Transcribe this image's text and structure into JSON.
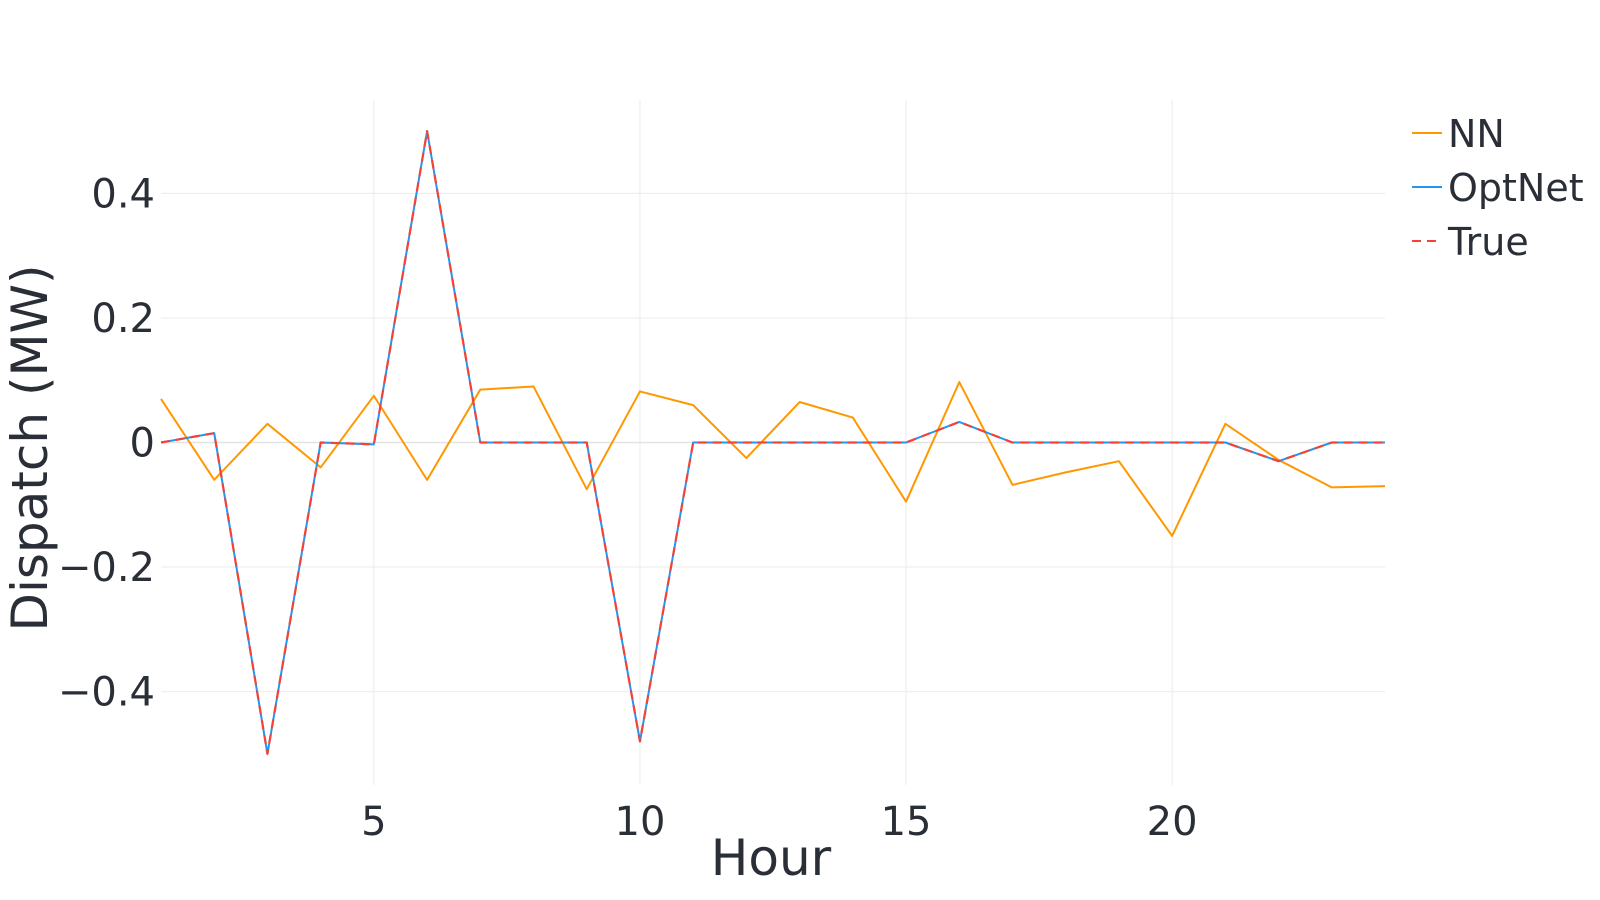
{
  "chart_data": {
    "type": "line",
    "title": "",
    "xlabel": "Hour",
    "ylabel": "Dispatch (MW)",
    "xlim": [
      1,
      24
    ],
    "ylim": [
      -0.55,
      0.55
    ],
    "grid": true,
    "legend_position": "top-right",
    "x_ticks": [
      5,
      10,
      15,
      20
    ],
    "x_tick_labels": [
      "5",
      "10",
      "15",
      "20"
    ],
    "y_ticks": [
      0.4,
      0.2,
      0,
      -0.2,
      -0.4
    ],
    "y_tick_labels": [
      "0.4",
      "0.2",
      "0",
      "−0.2",
      "−0.4"
    ],
    "x": [
      1,
      2,
      3,
      4,
      5,
      6,
      7,
      8,
      9,
      10,
      11,
      12,
      13,
      14,
      15,
      16,
      17,
      18,
      19,
      20,
      21,
      22,
      23,
      24
    ],
    "series": [
      {
        "name": "NN",
        "color": "#ff9800",
        "dash": "solid",
        "values": [
          0.07,
          -0.06,
          0.03,
          -0.04,
          0.075,
          -0.06,
          0.085,
          0.09,
          -0.075,
          0.082,
          0.06,
          -0.025,
          0.065,
          0.04,
          -0.095,
          0.097,
          -0.068,
          -0.048,
          -0.03,
          -0.15,
          0.03,
          -0.028,
          -0.072,
          -0.07
        ]
      },
      {
        "name": "OptNet",
        "color": "#2196f3",
        "dash": "solid",
        "values": [
          0.0,
          0.015,
          -0.5,
          0.0,
          -0.003,
          0.5,
          0.0,
          0.0,
          0.0,
          -0.48,
          0.0,
          0.0,
          0.0,
          0.0,
          0.0,
          0.033,
          0.0,
          0.0,
          0.0,
          0.0,
          0.0,
          -0.03,
          0.0,
          0.0
        ]
      },
      {
        "name": "True",
        "color": "#f44336",
        "dash": "dashed",
        "values": [
          0.0,
          0.015,
          -0.5,
          0.0,
          -0.003,
          0.5,
          0.0,
          0.0,
          0.0,
          -0.48,
          0.0,
          0.0,
          0.0,
          0.0,
          0.0,
          0.033,
          0.0,
          0.0,
          0.0,
          0.0,
          0.0,
          -0.03,
          0.0,
          0.0
        ]
      }
    ]
  }
}
